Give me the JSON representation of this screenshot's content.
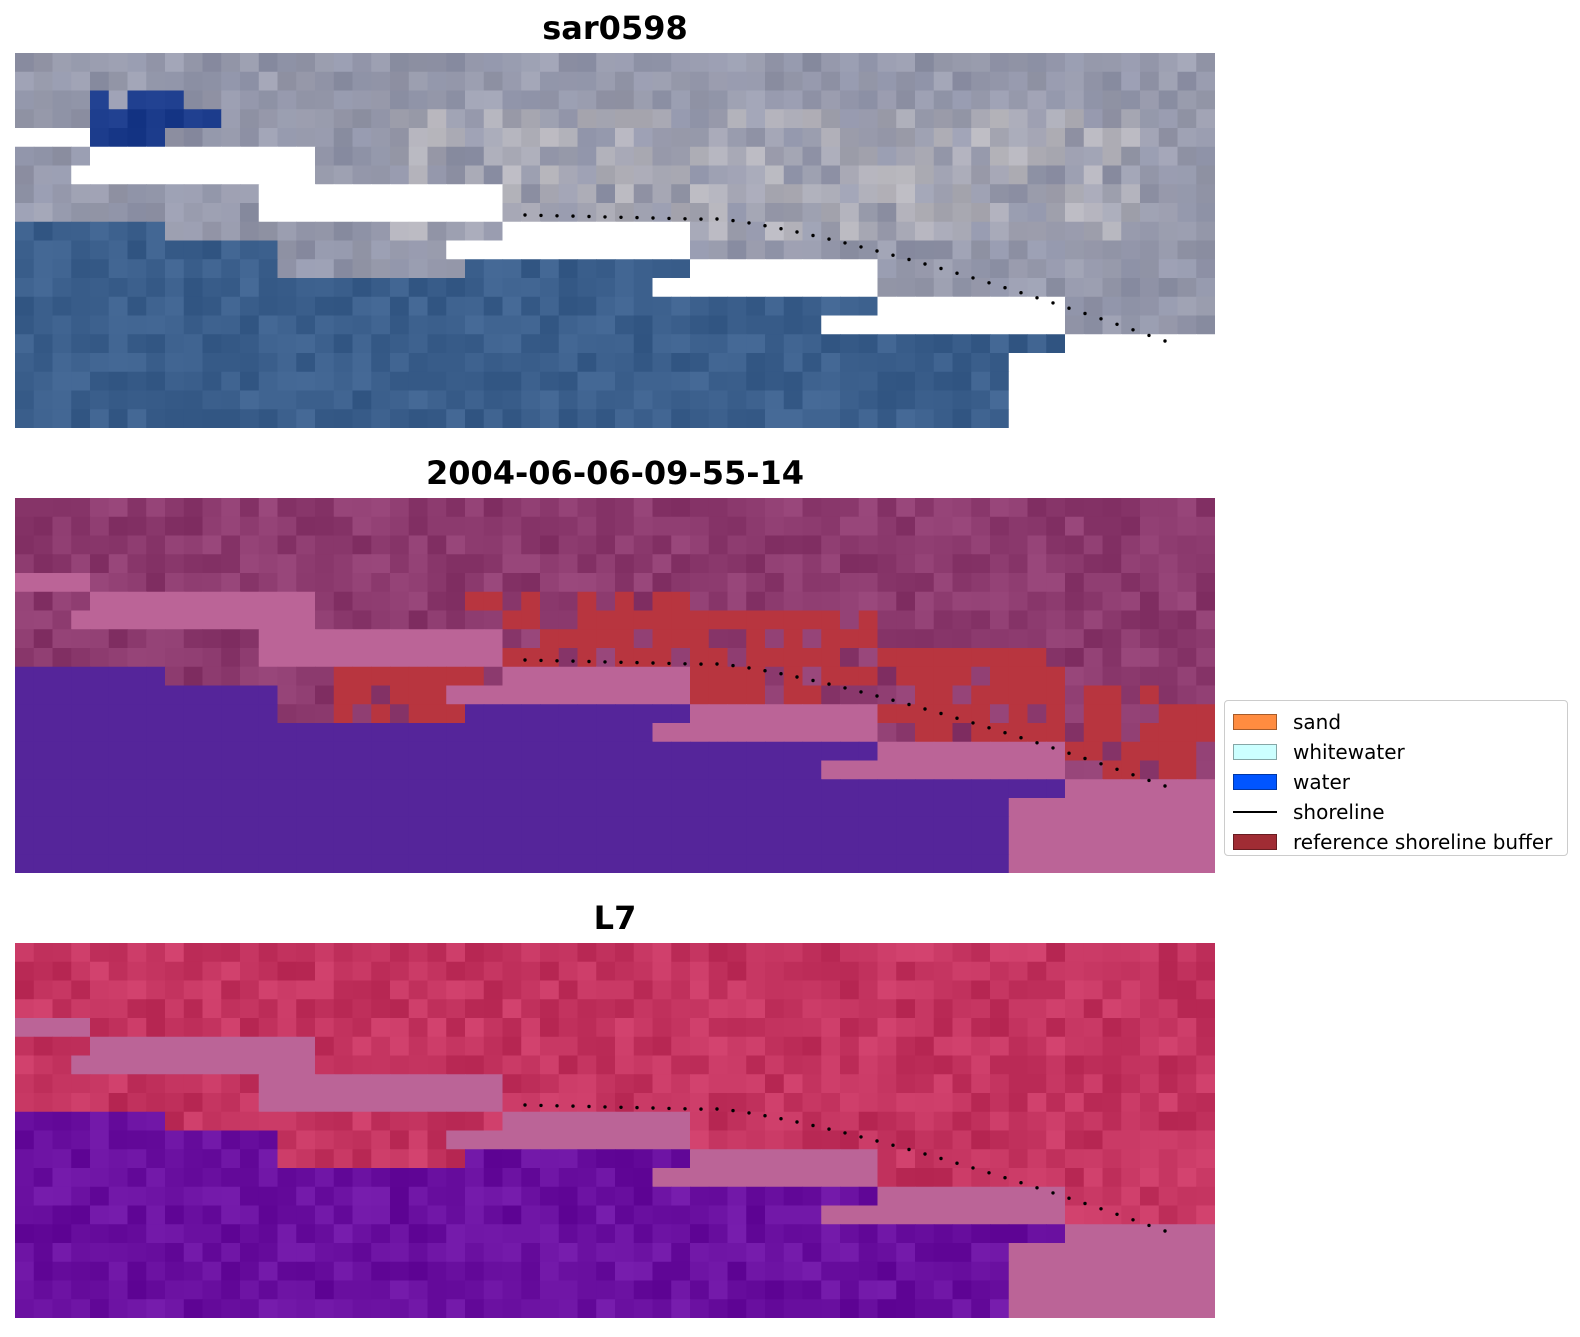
{
  "panels": [
    {
      "title": "sar0598",
      "style": "rgb"
    },
    {
      "title": "2004-06-06-09-55-14",
      "style": "classified"
    },
    {
      "title": "L7",
      "style": "index"
    }
  ],
  "legend": {
    "items": [
      {
        "label": "sand",
        "color": "#ff8c40",
        "kind": "patch"
      },
      {
        "label": "whitewater",
        "color": "#ccffff",
        "kind": "patch"
      },
      {
        "label": "water",
        "color": "#0055ff",
        "kind": "patch"
      },
      {
        "label": "shoreline",
        "color": "#000000",
        "kind": "line"
      },
      {
        "label": "reference shoreline buffer",
        "color": "#a02c34",
        "kind": "patch"
      }
    ]
  },
  "colors": {
    "land_rgb": "#8f93a8",
    "water_rgb": "#3b5f8c",
    "bright_rgb": "#d8d2cc",
    "dark_blue_rgb": "#1a3a8a",
    "land_class": "#8c3a6e",
    "water_class": "#55259a",
    "buffer_class": "#b8353f",
    "mask_class": "#bb6497",
    "land_index": "#c43460",
    "water_index": "#6a10a0",
    "dots": "#000000"
  }
}
